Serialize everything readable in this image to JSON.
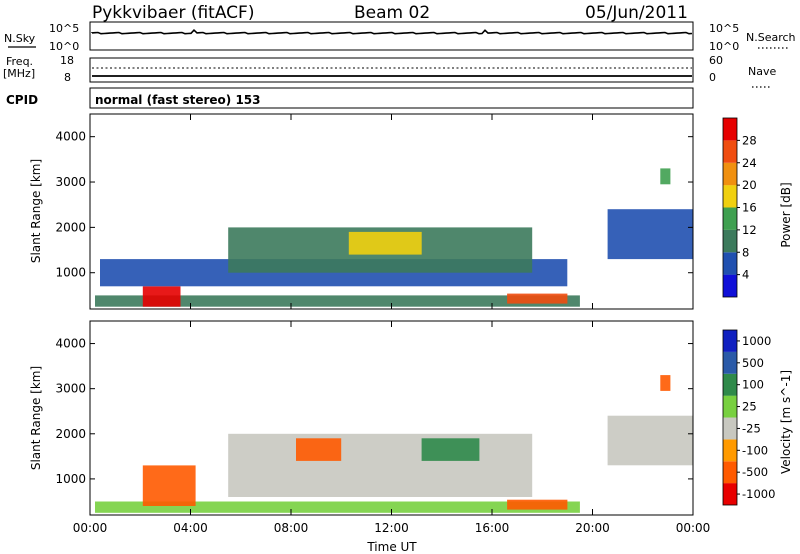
{
  "header": {
    "station": "Pykkvibaer (fitACF)",
    "beam": "Beam 02",
    "date": "05/Jun/2011"
  },
  "panels": {
    "nsky": {
      "left_label": "N.Sky",
      "left_ticks": [
        "10^5",
        "10^0"
      ],
      "right_ticks": [
        "10^5",
        "10^0"
      ],
      "right_label": "N.Search"
    },
    "freq": {
      "left_label_1": "Freq.",
      "left_label_2": "[MHz]",
      "left_ticks": [
        "18",
        "8"
      ],
      "right_ticks": [
        "60",
        "0"
      ],
      "right_label": "Nave"
    },
    "cpid": {
      "label": "CPID",
      "text": "normal (fast stereo) 153"
    }
  },
  "colors": {
    "power": [
      "#1010d8",
      "#2050b0",
      "#3c7a5c",
      "#3fa050",
      "#f0d010",
      "#f09010",
      "#f04d10",
      "#e60000"
    ],
    "velocity": [
      "#e80000",
      "#ff5a00",
      "#ff9a00",
      "#c8c8c0",
      "#78d040",
      "#2f8a4a",
      "#2a5aa8",
      "#1020c0"
    ]
  },
  "chart_data": [
    {
      "type": "heatmap",
      "title": "Power",
      "xlabel": "",
      "ylabel": "Slant Range [km]",
      "x_ticks": [
        "00:00",
        "04:00",
        "08:00",
        "12:00",
        "16:00",
        "20:00",
        "00:00"
      ],
      "y_ticks": [
        "1000",
        "2000",
        "3000",
        "4000"
      ],
      "ylim": [
        200,
        4500
      ],
      "colorbar": {
        "label": "Power [dB]",
        "ticks": [
          "4",
          "8",
          "12",
          "16",
          "20",
          "24",
          "28"
        ]
      },
      "echo_regions": [
        {
          "t_start": 0.2,
          "t_end": 19.5,
          "range_low": 250,
          "range_high": 500,
          "power_db": 10
        },
        {
          "t_start": 2.1,
          "t_end": 3.6,
          "range_low": 250,
          "range_high": 700,
          "power_db": 29
        },
        {
          "t_start": 16.6,
          "t_end": 19.0,
          "range_low": 320,
          "range_high": 540,
          "power_db": 27
        },
        {
          "t_start": 0.4,
          "t_end": 19.0,
          "range_low": 700,
          "range_high": 1300,
          "power_db": 6
        },
        {
          "t_start": 5.5,
          "t_end": 17.6,
          "range_low": 1000,
          "range_high": 2000,
          "power_db": 10
        },
        {
          "t_start": 10.3,
          "t_end": 13.2,
          "range_low": 1400,
          "range_high": 1900,
          "power_db": 18
        },
        {
          "t_start": 20.6,
          "t_end": 24.0,
          "range_low": 1300,
          "range_high": 2400,
          "power_db": 5
        },
        {
          "t_start": 22.7,
          "t_end": 23.1,
          "range_low": 2950,
          "range_high": 3300,
          "power_db": 13
        }
      ]
    },
    {
      "type": "heatmap",
      "title": "Velocity",
      "xlabel": "Time UT",
      "ylabel": "Slant Range [km]",
      "x_ticks": [
        "00:00",
        "04:00",
        "08:00",
        "12:00",
        "16:00",
        "20:00",
        "00:00"
      ],
      "y_ticks": [
        "1000",
        "2000",
        "3000",
        "4000"
      ],
      "ylim": [
        200,
        4500
      ],
      "colorbar": {
        "label": "Velocity [m s^-1]",
        "ticks": [
          "1000",
          "500",
          "100",
          "25",
          "-25",
          "-100",
          "-500",
          "-1000"
        ]
      },
      "echo_regions": [
        {
          "t_start": 0.2,
          "t_end": 19.5,
          "range_low": 250,
          "range_high": 500,
          "velocity_ms": 60
        },
        {
          "t_start": 2.1,
          "t_end": 4.2,
          "range_low": 400,
          "range_high": 1300,
          "velocity_ms": -300
        },
        {
          "t_start": 16.6,
          "t_end": 19.0,
          "range_low": 320,
          "range_high": 540,
          "velocity_ms": -150
        },
        {
          "t_start": 5.5,
          "t_end": 17.6,
          "range_low": 600,
          "range_high": 2000,
          "velocity_ms": 0
        },
        {
          "t_start": 8.2,
          "t_end": 10.0,
          "range_low": 1400,
          "range_high": 1900,
          "velocity_ms": -300
        },
        {
          "t_start": 13.2,
          "t_end": 15.5,
          "range_low": 1400,
          "range_high": 1900,
          "velocity_ms": 400
        },
        {
          "t_start": 20.6,
          "t_end": 24.0,
          "range_low": 1300,
          "range_high": 2400,
          "velocity_ms": 0
        },
        {
          "t_start": 22.7,
          "t_end": 23.1,
          "range_low": 2950,
          "range_high": 3300,
          "velocity_ms": -200
        }
      ]
    }
  ]
}
